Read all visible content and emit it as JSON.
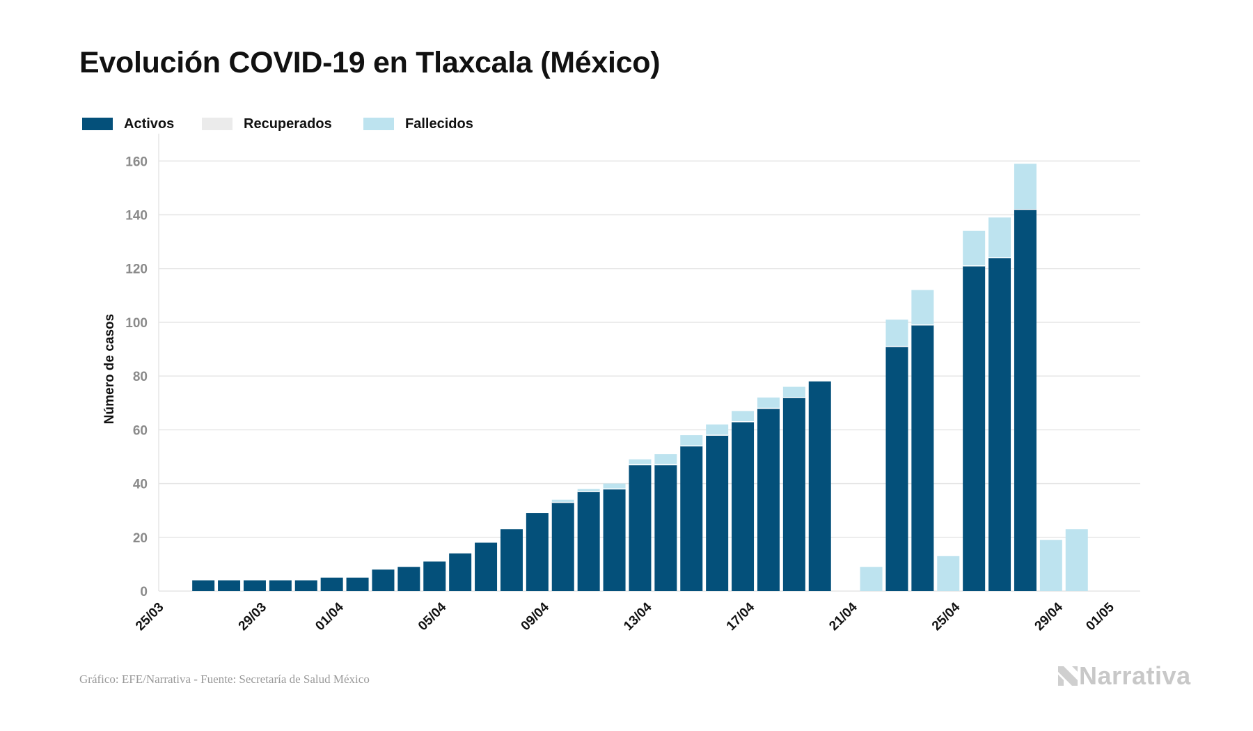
{
  "title": "Evolución COVID-19 en Tlaxcala (México)",
  "legend": [
    {
      "label": "Activos",
      "color": "#04507a"
    },
    {
      "label": "Recuperados",
      "color": "#ebebeb"
    },
    {
      "label": "Fallecidos",
      "color": "#bde3ef"
    }
  ],
  "footer": "Gráfico: EFE/Narrativa - Fuente: Secretaría de Salud México",
  "brand": "Narrativa",
  "colors": {
    "activos": "#04507a",
    "recuperados": "#ebebeb",
    "fallecidos": "#bde3ef",
    "grid": "#e6e6e6",
    "tick": "#8a8a8a",
    "xtick": "#111111"
  },
  "chart_data": {
    "type": "bar",
    "stacked": true,
    "ylabel": "Número de casos",
    "xlabel": "",
    "ylim": [
      0,
      165
    ],
    "yticks": [
      0,
      20,
      40,
      60,
      80,
      100,
      120,
      140,
      160
    ],
    "grid": true,
    "legend_position": "top-left",
    "x_tick_labels": [
      "25/03",
      "29/03",
      "01/04",
      "05/04",
      "09/04",
      "13/04",
      "17/04",
      "21/04",
      "25/04",
      "29/04",
      "01/05"
    ],
    "categories": [
      "26/03",
      "27/03",
      "28/03",
      "29/03",
      "30/03",
      "31/03",
      "01/04",
      "02/04",
      "03/04",
      "04/04",
      "05/04",
      "06/04",
      "07/04",
      "08/04",
      "09/04",
      "10/04",
      "11/04",
      "12/04",
      "13/04",
      "14/04",
      "15/04",
      "16/04",
      "17/04",
      "18/04",
      "19/04",
      "20/04",
      "21/04",
      "22/04",
      "23/04",
      "24/04",
      "25/04",
      "26/04",
      "27/04",
      "28/04",
      "29/04",
      "30/04"
    ],
    "series": [
      {
        "name": "Activos",
        "values": [
          4,
          4,
          4,
          4,
          4,
          5,
          5,
          8,
          9,
          11,
          14,
          18,
          23,
          29,
          33,
          37,
          38,
          47,
          47,
          54,
          58,
          63,
          68,
          72,
          78,
          0,
          0,
          91,
          99,
          0,
          121,
          124,
          142,
          0,
          0,
          0
        ]
      },
      {
        "name": "Recuperados",
        "values": [
          0,
          0,
          0,
          0,
          0,
          0,
          0,
          0,
          0,
          0,
          0,
          0,
          0,
          0,
          0,
          0,
          0,
          0,
          0,
          0,
          0,
          0,
          0,
          0,
          0,
          0,
          0,
          0,
          0,
          0,
          0,
          0,
          0,
          0,
          0,
          0
        ]
      },
      {
        "name": "Fallecidos",
        "values": [
          0,
          0,
          0,
          0,
          0,
          0,
          0,
          0,
          0,
          0,
          0,
          0,
          0,
          0,
          1,
          1,
          2,
          2,
          4,
          4,
          4,
          4,
          4,
          4,
          0,
          0,
          9,
          10,
          13,
          13,
          13,
          15,
          17,
          19,
          23,
          0
        ]
      }
    ]
  }
}
